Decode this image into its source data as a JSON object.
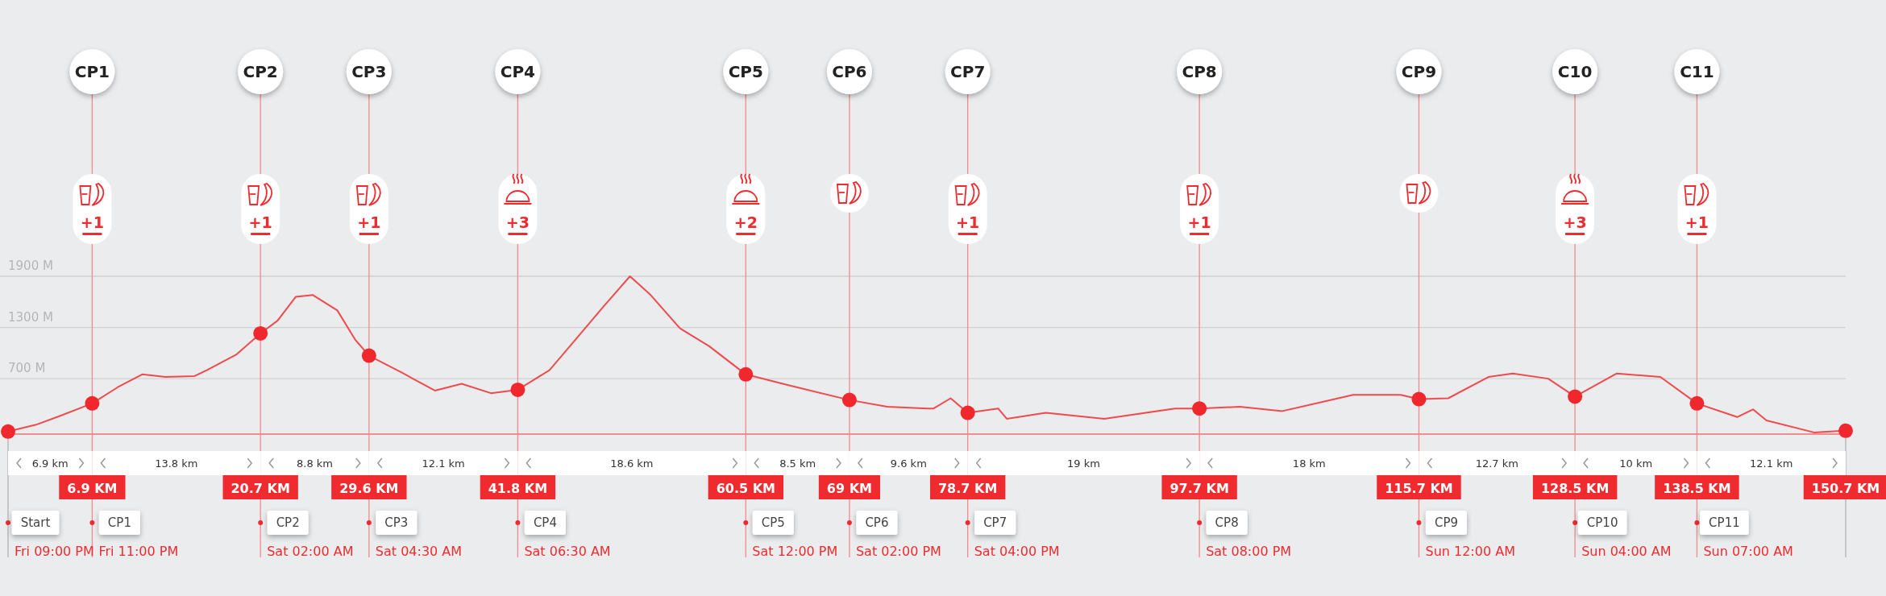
{
  "chart_data": {
    "type": "line",
    "xlim": [
      0,
      150.7
    ],
    "ylim": [
      50,
      1900
    ],
    "xticks": [
      {
        "value": 6.9,
        "label": "6.9 KM"
      },
      {
        "value": 20.7,
        "label": "20.7 KM"
      },
      {
        "value": 29.6,
        "label": "29.6 KM"
      },
      {
        "value": 41.8,
        "label": "41.8 KM"
      },
      {
        "value": 60.5,
        "label": "60.5 KM"
      },
      {
        "value": 69,
        "label": "69 KM"
      },
      {
        "value": 78.7,
        "label": "78.7 KM"
      },
      {
        "value": 97.7,
        "label": "97.7 KM"
      },
      {
        "value": 115.7,
        "label": "115.7 KM"
      },
      {
        "value": 128.5,
        "label": "128.5 KM"
      },
      {
        "value": 138.5,
        "label": "138.5 KM"
      },
      {
        "value": 150.7,
        "label": "150.7 KM"
      }
    ],
    "yticks": [
      {
        "value": 700,
        "label": "700 M"
      },
      {
        "value": 1300,
        "label": "1300 M"
      },
      {
        "value": 1900,
        "label": "1900 M"
      }
    ],
    "grid": "y",
    "series": [
      {
        "color": "#ef4a4c",
        "line_style": "solid",
        "marker": "none",
        "x": [
          0,
          2.3,
          4.2,
          6.9,
          9.0,
          11.0,
          12.9,
          15.3,
          16.3,
          18.7,
          20.7,
          22.1,
          23.6,
          25.0,
          27.0,
          28.5,
          29.6,
          32.3,
          35.0,
          37.2,
          39.6,
          41.8,
          44.4,
          46.9,
          48.8,
          51.0,
          52.7,
          55.1,
          57.5,
          60.5,
          63.8,
          69.0,
          72.1,
          75.4,
          75.9,
          77.3,
          78.7,
          81.2,
          81.9,
          85.1,
          89.9,
          95.7,
          97.7,
          101.0,
          104.5,
          110.3,
          114.2,
          115.7,
          118.1,
          121.4,
          123.4,
          126.3,
          128.5,
          131.9,
          135.5,
          138.5,
          141.8,
          143.1,
          144.2,
          148.1,
          150.7
        ],
        "values": [
          80,
          160,
          260,
          410,
          600,
          750,
          720,
          730,
          800,
          980,
          1230,
          1380,
          1660,
          1680,
          1500,
          1150,
          970,
          770,
          560,
          640,
          530,
          570,
          800,
          1220,
          1540,
          1900,
          1680,
          1290,
          1080,
          750,
          630,
          450,
          370,
          350,
          350,
          470,
          300,
          350,
          230,
          300,
          230,
          350,
          350,
          370,
          320,
          510,
          510,
          460,
          470,
          720,
          760,
          700,
          490,
          760,
          720,
          410,
          250,
          340,
          210,
          70,
          90
        ]
      },
      {
        "type": "scatter",
        "color": "#f0282d",
        "marker": "circle",
        "x": [
          0,
          6.9,
          20.7,
          29.6,
          41.8,
          60.5,
          69,
          78.7,
          97.7,
          115.7,
          128.5,
          138.5,
          150.7
        ],
        "values": [
          80,
          410,
          1230,
          970,
          570,
          750,
          450,
          300,
          350,
          460,
          490,
          410,
          90
        ]
      }
    ],
    "ref_lines": [
      {
        "axis": "x",
        "value": 6.9,
        "label": "CP1",
        "color": "#f38a8c"
      },
      {
        "axis": "x",
        "value": 20.7,
        "label": "CP2",
        "color": "#f38a8c"
      },
      {
        "axis": "x",
        "value": 29.6,
        "label": "CP3",
        "color": "#f38a8c"
      },
      {
        "axis": "x",
        "value": 41.8,
        "label": "CP4",
        "color": "#f38a8c"
      },
      {
        "axis": "x",
        "value": 60.5,
        "label": "CP5",
        "color": "#f38a8c"
      },
      {
        "axis": "x",
        "value": 69,
        "label": "CP6",
        "color": "#f38a8c"
      },
      {
        "axis": "x",
        "value": 78.7,
        "label": "CP7",
        "color": "#f38a8c"
      },
      {
        "axis": "x",
        "value": 97.7,
        "label": "CP8",
        "color": "#f38a8c"
      },
      {
        "axis": "x",
        "value": 115.7,
        "label": "CP9",
        "color": "#f38a8c"
      },
      {
        "axis": "x",
        "value": 128.5,
        "label": "C10",
        "color": "#f38a8c"
      },
      {
        "axis": "x",
        "value": 138.5,
        "label": "C11",
        "color": "#f38a8c"
      }
    ],
    "annotations": [
      {
        "text": "+1",
        "x": 6.9
      },
      {
        "text": "+1",
        "x": 20.7
      },
      {
        "text": "+1",
        "x": 29.6
      },
      {
        "text": "+3",
        "x": 41.8
      },
      {
        "text": "+2",
        "x": 60.5
      },
      {
        "text": "+1",
        "x": 78.7
      },
      {
        "text": "+1",
        "x": 97.7
      },
      {
        "text": "+3",
        "x": 128.5
      },
      {
        "text": "+1",
        "x": 138.5
      },
      "6.9 km",
      "13.8 km",
      "8.8 km",
      "12.1 km",
      "18.6 km",
      "8.5 km",
      "9.6 km",
      "19 km",
      "18 km",
      "12.7 km",
      "10 km",
      "12.1 km",
      "Start",
      "CP1",
      "CP2",
      "CP3",
      "CP4",
      "CP5",
      "CP6",
      "CP7",
      "CP8",
      "CP9",
      "CP10",
      "CP11",
      "Fri 09:00 PM",
      "Fri 11:00 PM",
      "Sat 02:00 AM",
      "Sat 04:30 AM",
      "Sat 06:30 AM",
      "Sat 12:00 PM",
      "Sat 02:00 PM",
      "Sat 04:00 PM",
      "Sat 08:00 PM",
      "Sun 12:00 AM",
      "Sun 04:00 AM",
      "Sun 07:00 AM"
    ]
  }
}
